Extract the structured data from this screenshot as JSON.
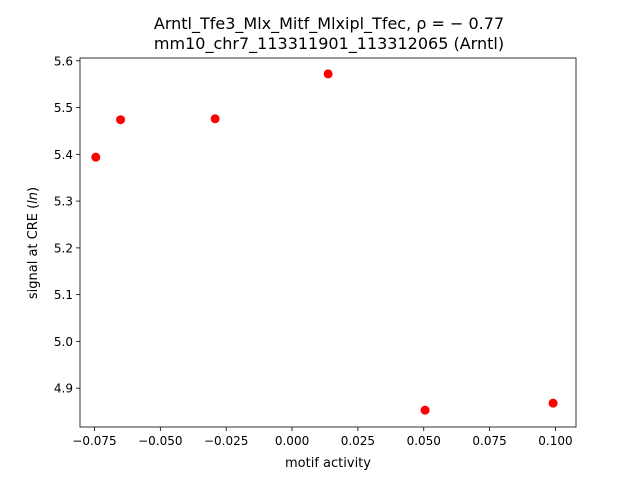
{
  "chart_data": {
    "type": "scatter",
    "title_line1": "Arntl_Tfe3_Mlx_Mitf_Mlxipl_Tfec, ρ = − 0.77",
    "title_line2": "mm10_chr7_113311901_113312065 (Arntl)",
    "xlabel": "motif activity",
    "ylabel": "signal at CRE (ln)",
    "xlim": [
      -0.0805,
      0.1078
    ],
    "ylim": [
      4.817,
      5.606
    ],
    "xticks": [
      -0.075,
      -0.05,
      -0.025,
      0.0,
      0.025,
      0.05,
      0.075,
      0.1
    ],
    "xtick_labels": [
      "−0.075",
      "−0.050",
      "−0.025",
      "0.000",
      "0.025",
      "0.050",
      "0.075",
      "0.100"
    ],
    "yticks": [
      4.9,
      5.0,
      5.1,
      5.2,
      5.3,
      5.4,
      5.5,
      5.6
    ],
    "ytick_labels": [
      "4.9",
      "5.0",
      "5.1",
      "5.2",
      "5.3",
      "5.4",
      "5.5",
      "5.6"
    ],
    "grid": false,
    "marker_color": "#ff0000",
    "points": [
      {
        "x": -0.0745,
        "y": 5.394
      },
      {
        "x": -0.0651,
        "y": 5.474
      },
      {
        "x": -0.0292,
        "y": 5.476
      },
      {
        "x": 0.0137,
        "y": 5.572
      },
      {
        "x": 0.0505,
        "y": 4.853
      },
      {
        "x": 0.0991,
        "y": 4.868
      }
    ]
  }
}
